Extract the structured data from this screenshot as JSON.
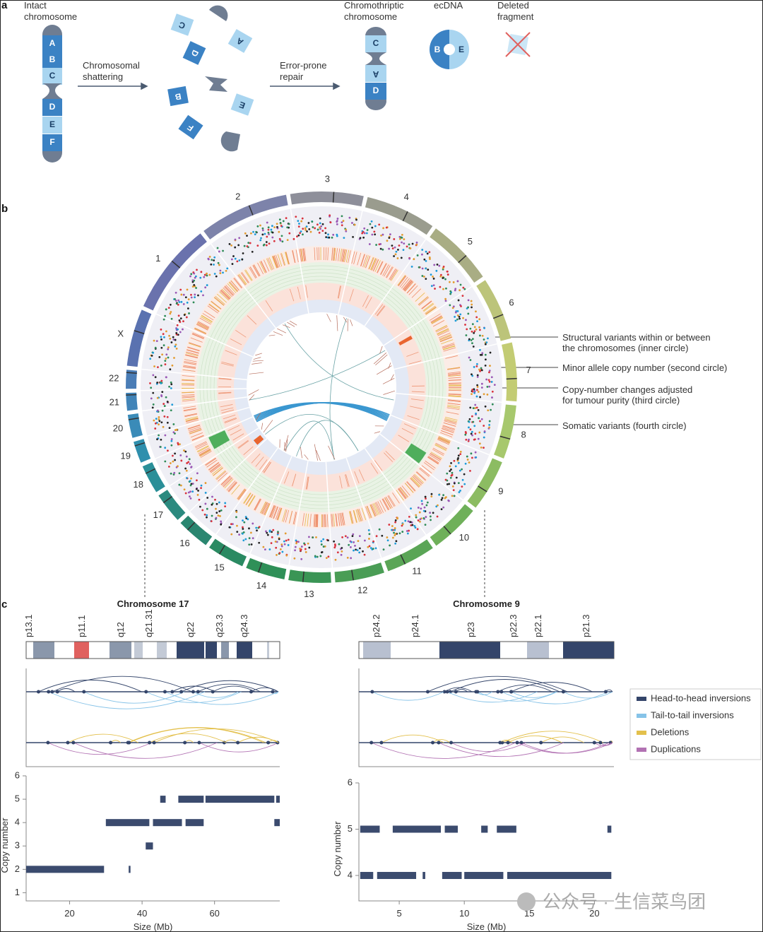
{
  "panel_a": {
    "label": "a",
    "intact": [
      "Intact",
      "chromosome"
    ],
    "intact_segments": [
      "A",
      "B",
      "C",
      "D",
      "E",
      "F"
    ],
    "step1": [
      "Chromosomal",
      "shattering"
    ],
    "fragments": [
      "C",
      "D",
      "A",
      "B",
      "E",
      "F"
    ],
    "step2": [
      "Error-prone",
      "repair"
    ],
    "result": [
      "Chromothriptic",
      "chromosome"
    ],
    "result_segments": [
      "C",
      "A",
      "D"
    ],
    "ecdna": "ecDNA",
    "ecdna_segments": [
      "B",
      "E"
    ],
    "deleted": [
      "Deleted",
      "fragment"
    ]
  },
  "panel_b": {
    "label": "b",
    "chromosomes": [
      "1",
      "2",
      "3",
      "4",
      "5",
      "6",
      "7",
      "8",
      "9",
      "10",
      "11",
      "12",
      "13",
      "14",
      "15",
      "16",
      "17",
      "18",
      "19",
      "20",
      "21",
      "22",
      "X"
    ],
    "annotations": [
      [
        "Structural variants within or between",
        "the chromosomes (inner circle)"
      ],
      [
        "Minor allele copy number (second circle)"
      ],
      [
        "Copy-number changes adjusted",
        "for tumour purity (third circle)"
      ],
      [
        "Somatic variants (fourth circle)"
      ]
    ]
  },
  "panel_c": {
    "label": "c",
    "legend": [
      {
        "name": "Head-to-head inversions",
        "color": "#34456a"
      },
      {
        "name": "Tail-to-tail inversions",
        "color": "#86c3e8"
      },
      {
        "name": "Deletions",
        "color": "#e3c04c"
      },
      {
        "name": "Duplications",
        "color": "#b272b3"
      }
    ],
    "charts": [
      {
        "title": "Chromosome 17",
        "bands": [
          "p13.1",
          "p11.1",
          "q12",
          "q21.31",
          "q22",
          "q23.3",
          "q24.3"
        ],
        "ylabel": "Copy number",
        "xlabel": "Size (Mb)",
        "xlim": [
          8,
          78
        ],
        "ylim": [
          0.65,
          6
        ],
        "xticks": [
          20,
          40,
          60
        ],
        "yticks": [
          1,
          2,
          3,
          4,
          5,
          6
        ],
        "color": "#3b4b6e",
        "segments": [
          {
            "start": 8,
            "end": 29.5,
            "value": 2
          },
          {
            "start": 36.3,
            "end": 36.8,
            "value": 2
          },
          {
            "start": 41,
            "end": 43,
            "value": 3
          },
          {
            "start": 30,
            "end": 42,
            "value": 4
          },
          {
            "start": 43,
            "end": 51,
            "value": 4
          },
          {
            "start": 52,
            "end": 57,
            "value": 4
          },
          {
            "start": 76.5,
            "end": 78,
            "value": 4
          },
          {
            "start": 45,
            "end": 46.5,
            "value": 5
          },
          {
            "start": 50,
            "end": 57,
            "value": 5
          },
          {
            "start": 57.5,
            "end": 76.5,
            "value": 5
          },
          {
            "start": 77,
            "end": 78,
            "value": 5
          }
        ]
      },
      {
        "title": "Chromosome 9",
        "bands": [
          "p24.2",
          "p24.1",
          "p23",
          "p22.3",
          "p22.1",
          "p21.3"
        ],
        "ylabel": "Copy number",
        "xlabel": "Size (Mb)",
        "xlim": [
          1.9,
          21.5
        ],
        "ylim": [
          3.45,
          6
        ],
        "xticks": [
          5,
          10,
          15,
          20
        ],
        "yticks": [
          4,
          5,
          6
        ],
        "color": "#3b4b6e",
        "segments": [
          {
            "start": 2,
            "end": 3.5,
            "value": 5
          },
          {
            "start": 4.5,
            "end": 8.2,
            "value": 5
          },
          {
            "start": 8.5,
            "end": 9.5,
            "value": 5
          },
          {
            "start": 11.3,
            "end": 11.8,
            "value": 5
          },
          {
            "start": 12.5,
            "end": 14,
            "value": 5
          },
          {
            "start": 21,
            "end": 21.3,
            "value": 5
          },
          {
            "start": 2,
            "end": 3,
            "value": 4
          },
          {
            "start": 3.3,
            "end": 6.3,
            "value": 4
          },
          {
            "start": 6.8,
            "end": 7,
            "value": 4
          },
          {
            "start": 8.3,
            "end": 9.8,
            "value": 4
          },
          {
            "start": 10,
            "end": 13,
            "value": 4
          },
          {
            "start": 13.3,
            "end": 21.3,
            "value": 4
          }
        ]
      }
    ]
  },
  "watermark": "公众号 · 生信菜鸟团"
}
